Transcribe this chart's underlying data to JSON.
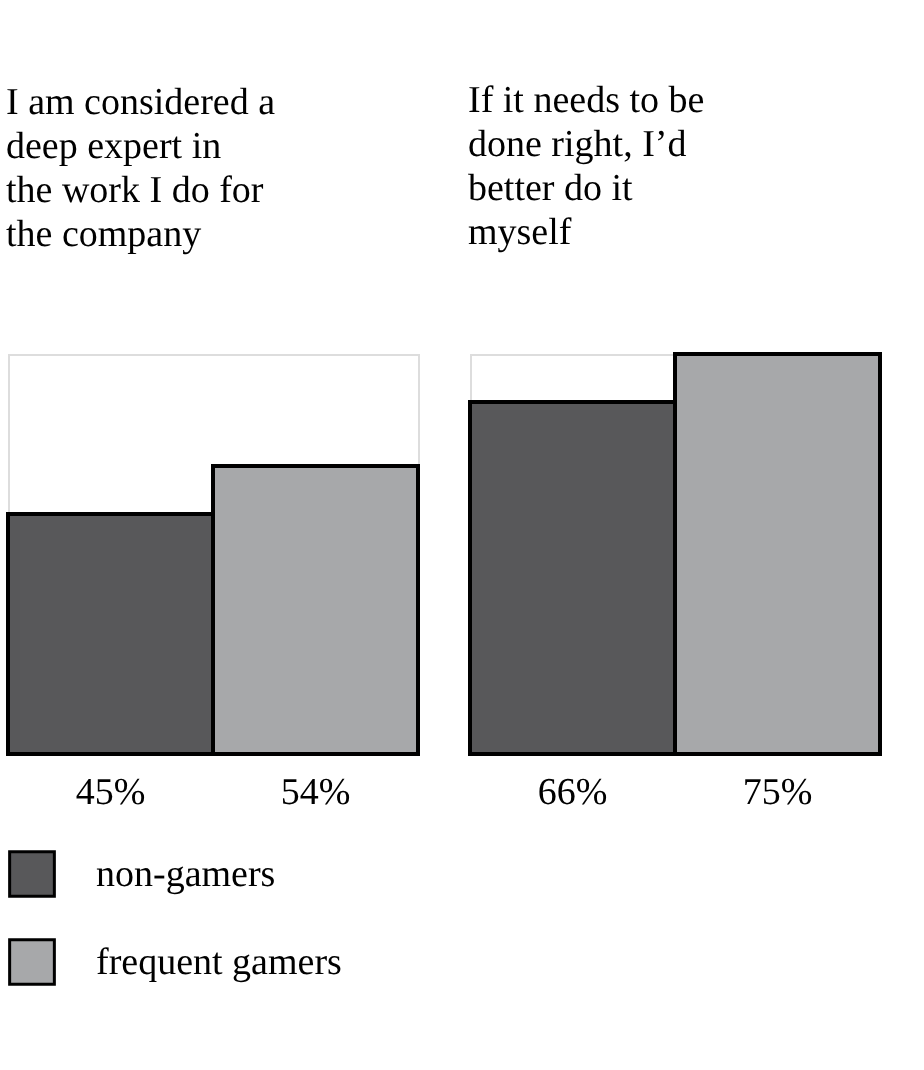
{
  "chart_data": [
    {
      "type": "bar",
      "title": "I am considered a deep expert in the work I do for the company",
      "categories": [
        null
      ],
      "series": [
        {
          "name": "non-gamers",
          "color": "#58585a",
          "values": [
            45
          ],
          "value_labels": [
            "45%"
          ]
        },
        {
          "name": "frequent gamers",
          "color": "#a7a8aa",
          "values": [
            54
          ],
          "value_labels": [
            "54%"
          ]
        }
      ],
      "tick_labels": false,
      "legend": "bottom"
    },
    {
      "type": "bar",
      "title": "If it needs to be done right, I’d better do it myself",
      "categories": [
        null
      ],
      "series": [
        {
          "color": "#58585a",
          "values": [
            66
          ],
          "value_labels": [
            "66%"
          ]
        },
        {
          "color": "#a7a8aa",
          "values": [
            75
          ],
          "value_labels": [
            "75%"
          ]
        }
      ],
      "tick_labels": false,
      "legend": false
    }
  ]
}
